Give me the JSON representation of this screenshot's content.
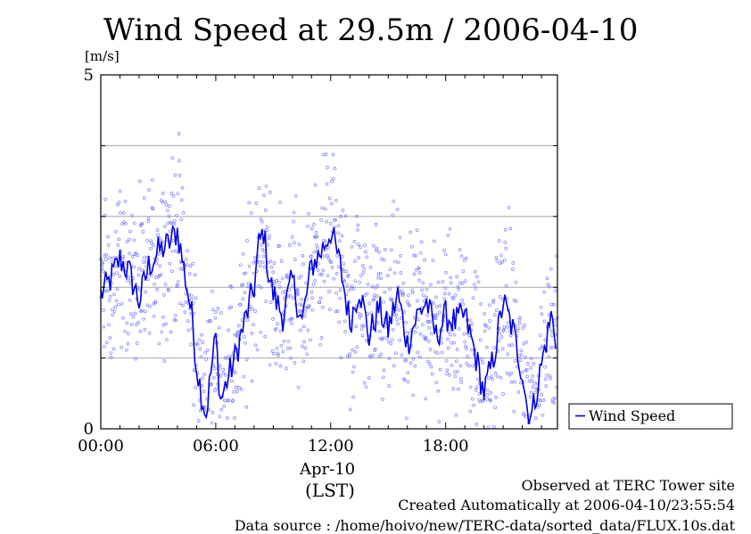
{
  "chart_data": {
    "type": "line",
    "title": "Wind Speed at 29.5m / 2006-04-10",
    "ylabel": "[m/s]",
    "xlabel_date": "Apr-10",
    "xlabel_tz": "(LST)",
    "ylim": [
      0,
      5
    ],
    "xlim_hours": [
      0,
      23.833
    ],
    "y_tick_labels": [
      "0",
      "5"
    ],
    "x_tick_labels": [
      "00:00",
      "06:00",
      "12:00",
      "18:00"
    ],
    "x_tick_hours": [
      0,
      6,
      12,
      18
    ],
    "grid_y": [
      1,
      2,
      3,
      4
    ],
    "legend": {
      "placement": "right",
      "label": "Wind Speed"
    },
    "series": [
      {
        "name": "Wind Speed",
        "color": "#0000e6",
        "scatter_color": "#6b6bff",
        "x_hours": [
          0.0,
          0.5,
          1.0,
          1.5,
          2.0,
          2.5,
          3.0,
          3.5,
          4.0,
          4.25,
          4.5,
          4.75,
          5.0,
          5.25,
          5.5,
          5.75,
          6.0,
          6.25,
          6.5,
          7.0,
          7.5,
          8.0,
          8.25,
          8.5,
          8.75,
          9.0,
          9.5,
          10.0,
          10.5,
          11.0,
          11.5,
          12.0,
          12.5,
          13.0,
          13.5,
          14.0,
          14.5,
          15.0,
          15.5,
          16.0,
          16.5,
          17.0,
          17.5,
          18.0,
          18.5,
          19.0,
          19.5,
          20.0,
          20.5,
          21.0,
          21.5,
          22.0,
          22.25,
          22.5,
          23.0,
          23.5,
          23.833
        ],
        "y": [
          1.9,
          2.1,
          2.4,
          2.2,
          1.8,
          2.3,
          2.5,
          2.6,
          2.8,
          2.4,
          2.0,
          1.6,
          0.9,
          0.5,
          0.2,
          0.8,
          1.3,
          0.4,
          0.6,
          1.0,
          1.5,
          2.0,
          2.6,
          2.8,
          2.2,
          1.9,
          1.6,
          2.1,
          1.5,
          2.3,
          2.5,
          2.8,
          2.3,
          1.5,
          2.0,
          1.3,
          1.7,
          1.4,
          1.9,
          1.2,
          1.6,
          1.8,
          1.3,
          1.6,
          1.5,
          1.6,
          1.1,
          0.5,
          1.0,
          1.8,
          1.4,
          0.8,
          0.3,
          0.2,
          0.9,
          1.6,
          1.2
        ]
      }
    ]
  },
  "footer": {
    "line1": "Observed at TERC Tower site",
    "line2": "Created Automatically at 2006-04-10/23:55:54",
    "line3": "Data source : /home/hoivo/new/TERC-data/sorted_data/FLUX.10s.dat"
  }
}
